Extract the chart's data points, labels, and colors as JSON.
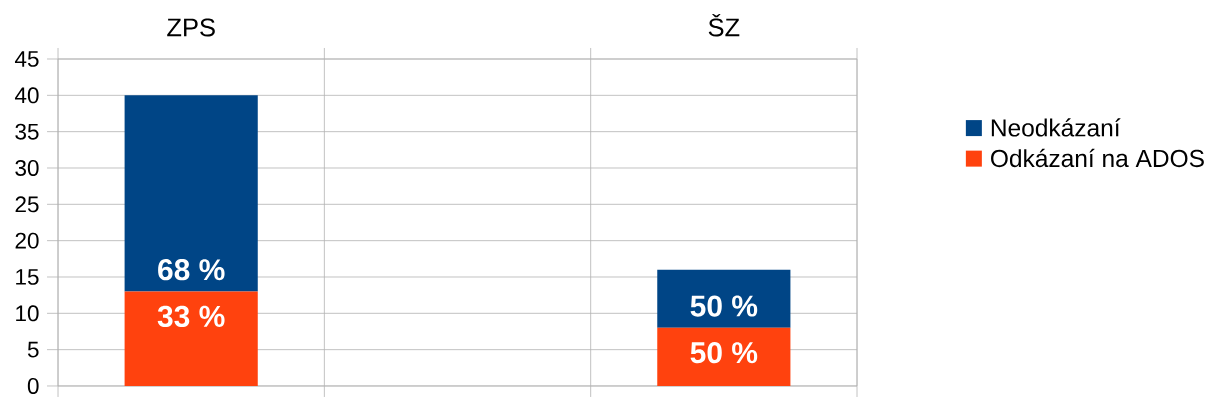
{
  "chart_data": {
    "type": "bar",
    "stacked": true,
    "categories": [
      "ZPS",
      null,
      "ŠZ"
    ],
    "series": [
      {
        "name": "Odkázaní na ADOS",
        "color": "#ff420e",
        "values": [
          13,
          null,
          8
        ]
      },
      {
        "name": "Neodkázaní",
        "color": "#004586",
        "values": [
          27,
          null,
          8
        ]
      }
    ],
    "annotations": [
      {
        "text": "68 %",
        "x": "ZPS",
        "y": 13
      },
      {
        "text": "33 %",
        "x": "ZPS",
        "y": 13
      },
      {
        "text": "50 %",
        "x": "ŠZ",
        "y": 8
      },
      {
        "text": "50 %",
        "x": "ŠZ",
        "y": 8
      }
    ],
    "ylim": [
      0,
      45
    ],
    "yticks": [
      0,
      5,
      10,
      15,
      20,
      25,
      30,
      35,
      40,
      45
    ],
    "grid": true,
    "legend": "right"
  }
}
